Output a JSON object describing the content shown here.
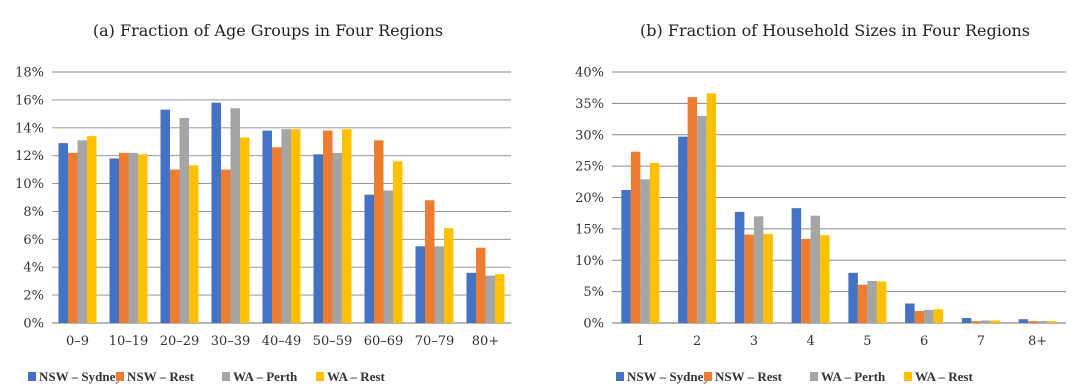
{
  "chart_data": [
    {
      "type": "bar",
      "title": "(a) Fraction of Age Groups in Four Regions",
      "xlabel": "",
      "ylabel": "",
      "ylim": [
        0,
        18
      ],
      "yticks": [
        0,
        2,
        4,
        6,
        8,
        10,
        12,
        14,
        16,
        18
      ],
      "ytick_labels": [
        "0%",
        "2%",
        "4%",
        "6%",
        "8%",
        "10%",
        "12%",
        "14%",
        "16%",
        "18%"
      ],
      "categories": [
        "0–9",
        "10–19",
        "20–29",
        "30–39",
        "40–49",
        "50–59",
        "60–69",
        "70–79",
        "80+"
      ],
      "series": [
        {
          "name": "NSW – Sydney",
          "values": [
            12.9,
            11.8,
            15.3,
            15.8,
            13.8,
            12.1,
            9.2,
            5.5,
            3.6
          ]
        },
        {
          "name": "NSW – Rest",
          "values": [
            12.2,
            12.2,
            11.0,
            11.0,
            12.6,
            13.8,
            13.1,
            8.8,
            5.4
          ]
        },
        {
          "name": "WA – Perth",
          "values": [
            13.1,
            12.2,
            14.7,
            15.4,
            13.9,
            12.2,
            9.5,
            5.5,
            3.4
          ]
        },
        {
          "name": "WA – Rest",
          "values": [
            13.4,
            12.1,
            11.3,
            13.3,
            13.9,
            13.9,
            11.6,
            6.8,
            3.5
          ]
        }
      ],
      "grid": true,
      "legend_position": "bottom"
    },
    {
      "type": "bar",
      "title": "(b) Fraction of Household Sizes in Four Regions",
      "xlabel": "",
      "ylabel": "",
      "ylim": [
        0,
        40
      ],
      "yticks": [
        0,
        5,
        10,
        15,
        20,
        25,
        30,
        35,
        40
      ],
      "ytick_labels": [
        "0%",
        "5%",
        "10%",
        "15%",
        "20%",
        "25%",
        "30%",
        "35%",
        "40%"
      ],
      "categories": [
        "1",
        "2",
        "3",
        "4",
        "5",
        "6",
        "7",
        "8+"
      ],
      "series": [
        {
          "name": "NSW – Sydney",
          "values": [
            21.2,
            29.7,
            17.7,
            18.3,
            8.0,
            3.1,
            0.8,
            0.6
          ]
        },
        {
          "name": "NSW – Rest",
          "values": [
            27.3,
            36.0,
            14.1,
            13.4,
            6.1,
            1.9,
            0.3,
            0.3
          ]
        },
        {
          "name": "WA – Perth",
          "values": [
            22.9,
            33.0,
            17.0,
            17.1,
            6.7,
            2.1,
            0.4,
            0.3
          ]
        },
        {
          "name": "WA – Rest",
          "values": [
            25.5,
            36.6,
            14.2,
            14.0,
            6.6,
            2.2,
            0.4,
            0.3
          ]
        }
      ],
      "grid": true,
      "legend_position": "bottom"
    }
  ],
  "colors": [
    "#4472c4",
    "#ed7d31",
    "#a5a5a5",
    "#ffc000"
  ]
}
